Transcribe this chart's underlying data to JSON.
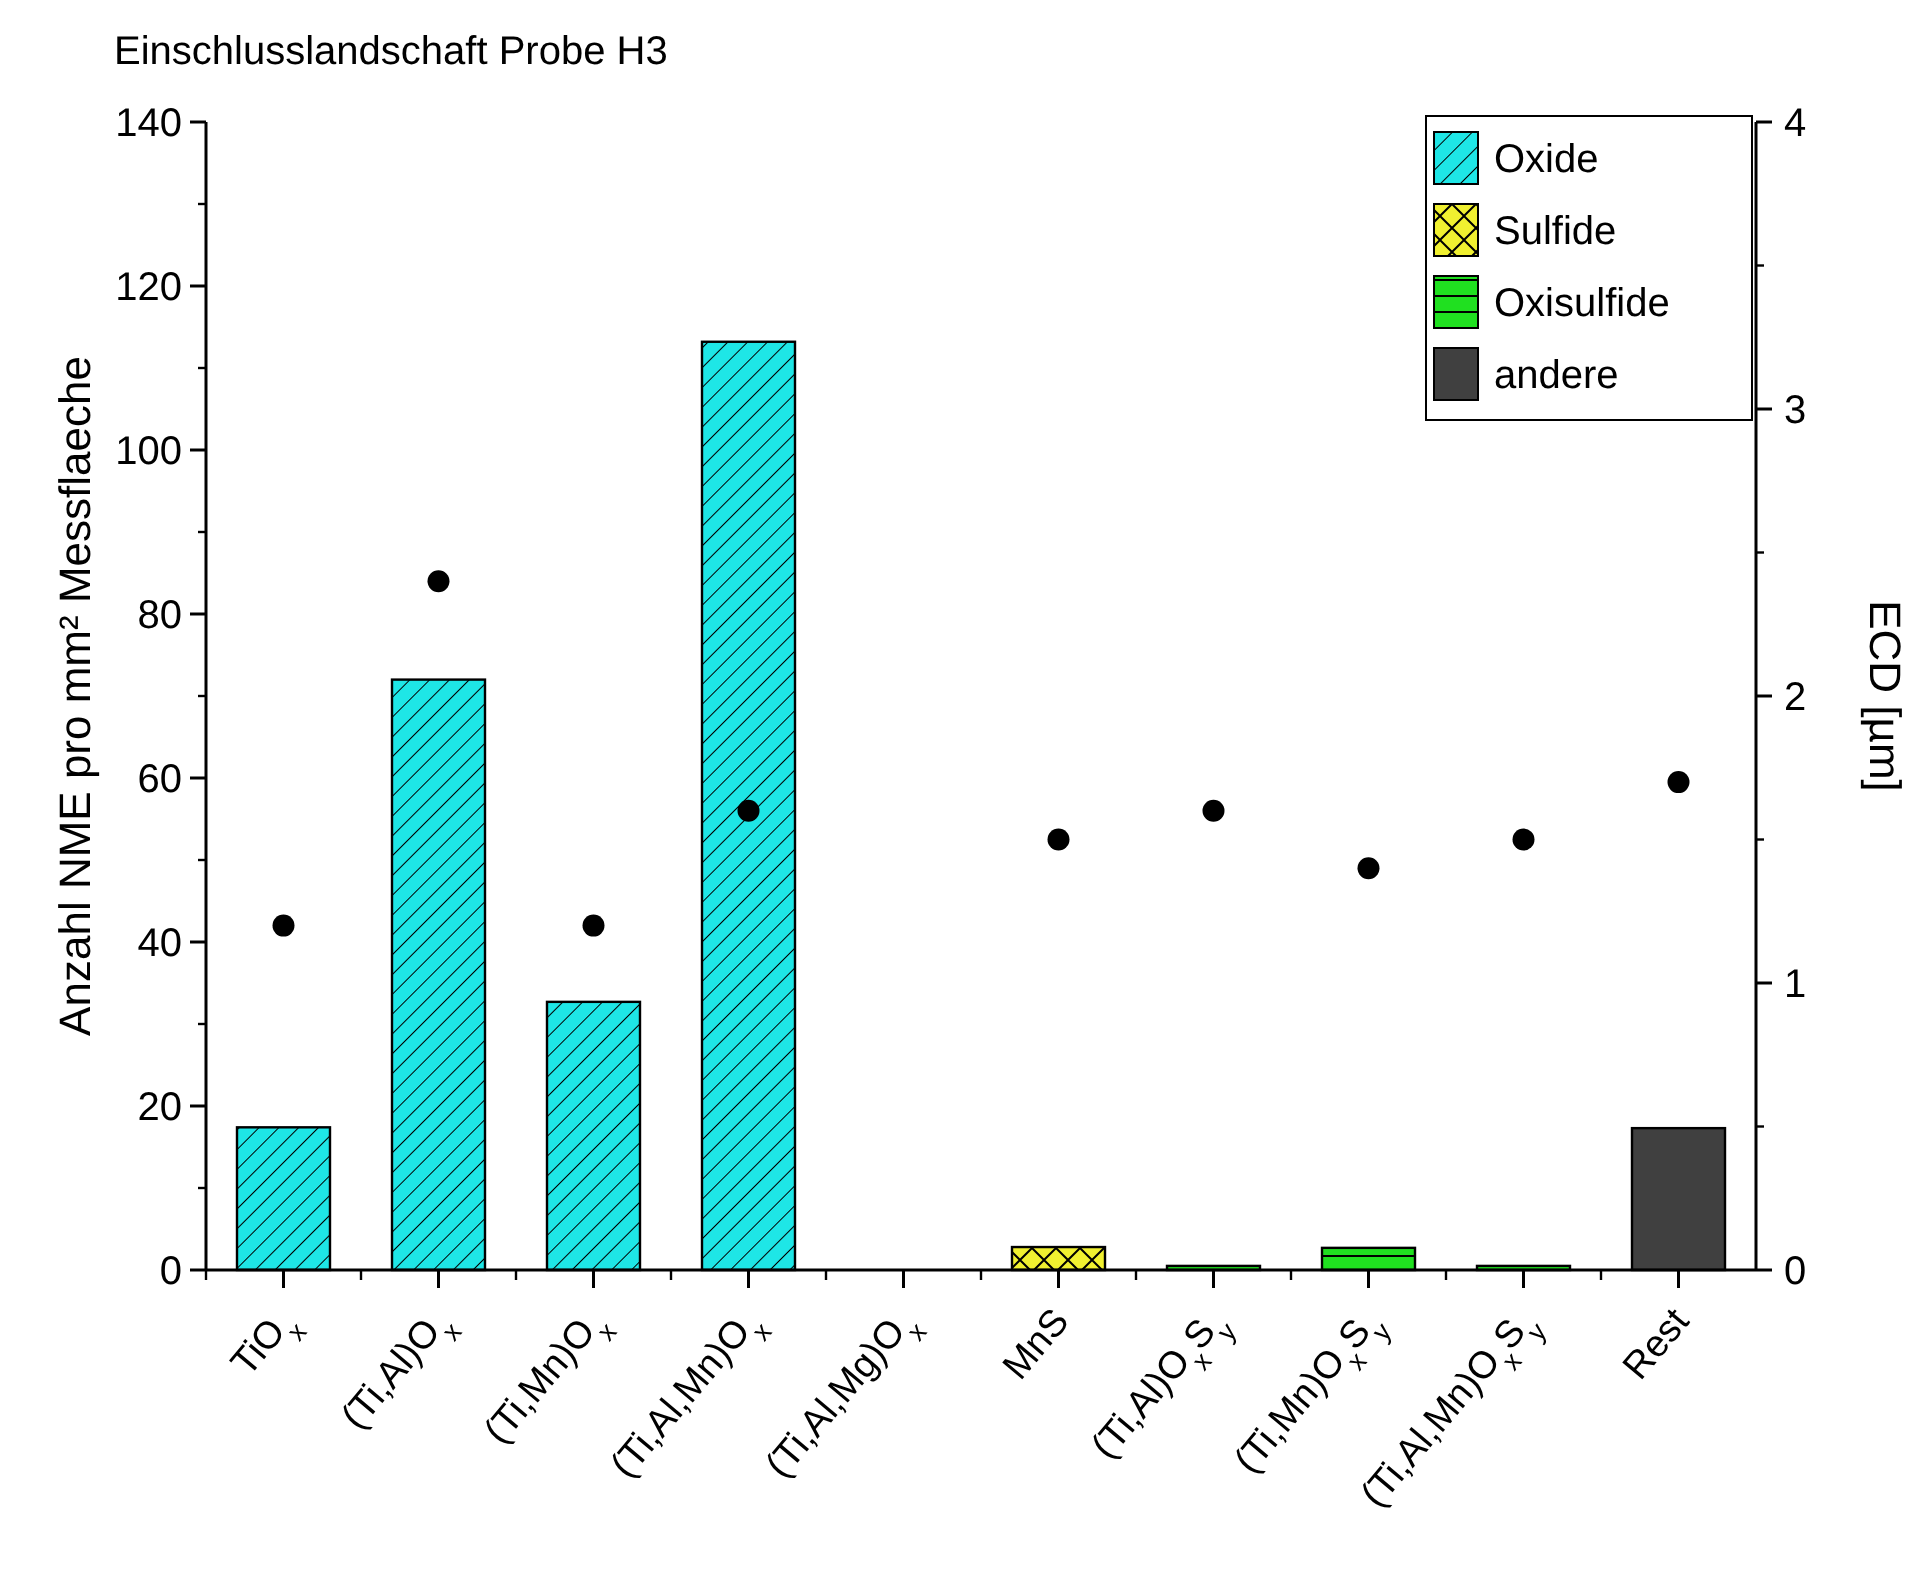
{
  "chart_data": {
    "type": "bar",
    "title": "Einschlusslandschaft Probe H3",
    "ylabel": "Anzahl NME pro mm² Messflaeche",
    "y2label": "ECD [µm]",
    "categories": [
      "TiO$_{x}$",
      "(Ti,Al)O$_{x}$",
      "(Ti,Mn)O$_{x}$",
      "(Ti,Al,Mn)O$_{x}$",
      "(Ti,Al,Mg)O$_{x}$",
      "MnS",
      "(Ti,Al)O$_{x}$S$_{y}$",
      "(Ti,Mn)O$_{x}$S$_{y}$",
      "(Ti,Al,Mn)O$_{x}$S$_{y}$",
      "Rest"
    ],
    "series": [
      {
        "name": "Oxide",
        "color": "#1ee6e6",
        "values": [
          17.4,
          72,
          32.7,
          113.2,
          null,
          null,
          null,
          null,
          null,
          null
        ]
      },
      {
        "name": "Sulfide",
        "color": "#f0f030",
        "values": [
          null,
          null,
          null,
          null,
          null,
          2.8,
          null,
          null,
          null,
          null
        ]
      },
      {
        "name": "Oxisulfide",
        "color": "#20e020",
        "values": [
          null,
          null,
          null,
          null,
          null,
          null,
          0.5,
          2.7,
          0.5,
          null
        ]
      },
      {
        "name": "andere",
        "color": "#404040",
        "values": [
          null,
          null,
          null,
          null,
          null,
          null,
          null,
          null,
          null,
          17.3
        ]
      },
      {
        "type": "scatter",
        "axis": "y2",
        "color": "#000000",
        "marker": "circle",
        "values": [
          1.2,
          2.4,
          1.2,
          1.6,
          null,
          1.5,
          1.6,
          1.4,
          1.5,
          1.7
        ]
      }
    ],
    "ylim": [
      0,
      140
    ],
    "yticks": [
      0,
      20,
      40,
      60,
      80,
      100,
      120,
      140
    ],
    "y2lim": [
      0,
      4
    ],
    "y2ticks": [
      0,
      1,
      2,
      3,
      4
    ],
    "legend": "top right",
    "grid": false
  }
}
